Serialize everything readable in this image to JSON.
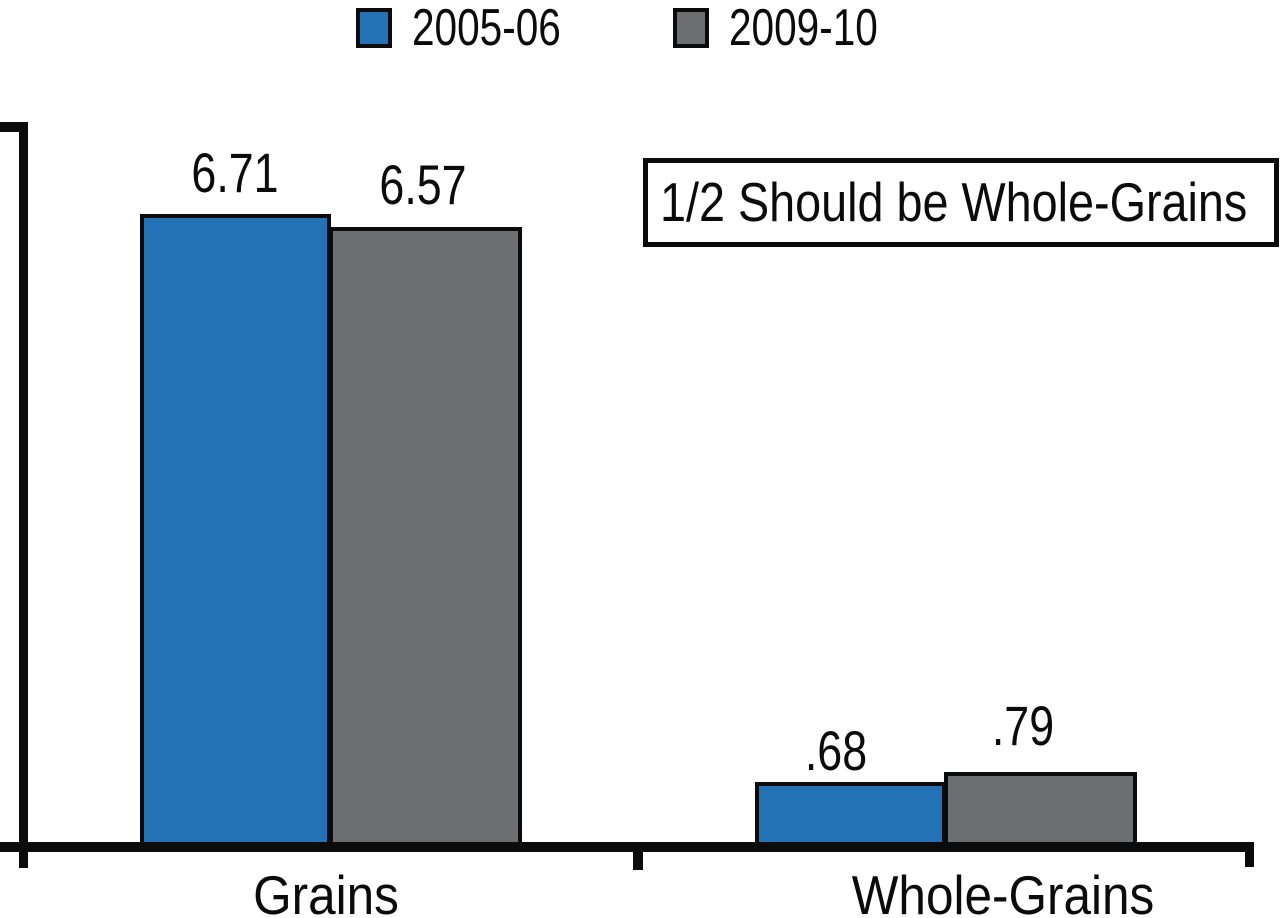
{
  "chart_data": {
    "type": "bar",
    "title": "",
    "xlabel": "",
    "ylabel": "",
    "categories": [
      "Grains",
      "Whole-Grains"
    ],
    "series": [
      {
        "name": "2005-06",
        "color": "#2272B5",
        "values": [
          6.71,
          0.68
        ],
        "value_labels": [
          "6.71",
          ".68"
        ]
      },
      {
        "name": "2009-10",
        "color": "#6C6E70",
        "values": [
          6.57,
          0.79
        ],
        "value_labels": [
          "6.57",
          ".79"
        ]
      }
    ],
    "ylim": [
      0,
      7.7
    ],
    "y_axis_tick_labels_shown": false,
    "grid": false,
    "legend_position": "top",
    "annotation": "1/2 Should be Whole-Grains",
    "axis_color": "#0B0B0B",
    "bar_border_color": "#0B0B0B",
    "background_color": "#FFFFFF"
  }
}
